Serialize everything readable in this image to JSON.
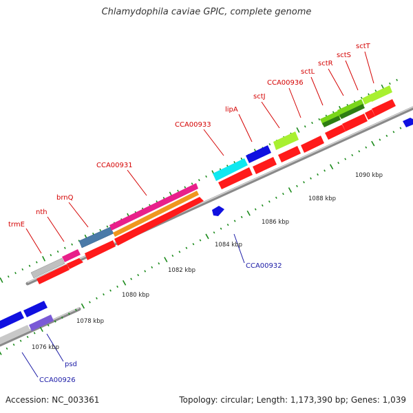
{
  "title": "Chlamydophila caviae GPIC, complete genome",
  "footer": {
    "accession": "Accession: NC_003361",
    "summary": "Topology: circular; Length: 1,173,390 bp; Genes: 1,039"
  },
  "kbp_labels": [
    "1076 kbp",
    "1078 kbp",
    "1080 kbp",
    "1082 kbp",
    "1084 kbp",
    "1086 kbp",
    "1088 kbp",
    "1090 kbp"
  ],
  "forward_gene_labels": [
    "trmE",
    "nth",
    "brnQ",
    "CCA00931",
    "CCA00933",
    "lipA",
    "sctJ",
    "CCA00936",
    "sctL",
    "sctR",
    "sctS",
    "sctT"
  ],
  "reverse_gene_labels": [
    "CCA00926",
    "psd",
    "CCA00932"
  ],
  "colors": {
    "forward_label": "#d40000",
    "reverse_label": "#1a1aa6",
    "cds_red": "#ff1a1a",
    "gene_blue": "#1010e0",
    "backbone": "#9a9a9a",
    "tick_green": "#1a8a1a"
  }
}
